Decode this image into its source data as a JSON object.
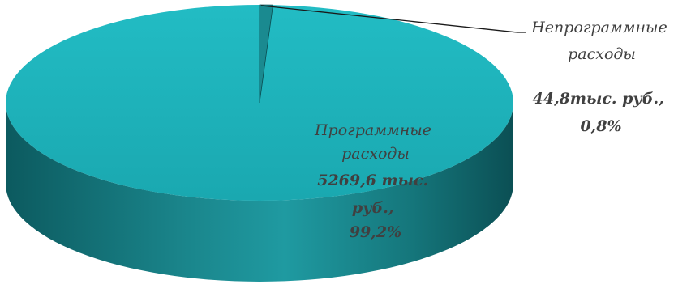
{
  "chart_data": {
    "type": "pie",
    "style": "3d",
    "title": "",
    "unit": "тыс. руб.",
    "slices": [
      {
        "label_lines": [
          "Программные",
          "расходы"
        ],
        "value_lines": [
          "5269,6 тыс.",
          "руб.,",
          "99,2%"
        ],
        "value": 5269.6,
        "percent": 99.2,
        "color": "#1fb5bd"
      },
      {
        "label_lines": [
          "Непрограммные",
          "расходы"
        ],
        "value_lines": [
          "44,8тыс. руб.,",
          "0,8%"
        ],
        "value": 44.8,
        "percent": 0.8,
        "color": "#1a8a90"
      }
    ],
    "legend": "none",
    "leader_line": true
  }
}
